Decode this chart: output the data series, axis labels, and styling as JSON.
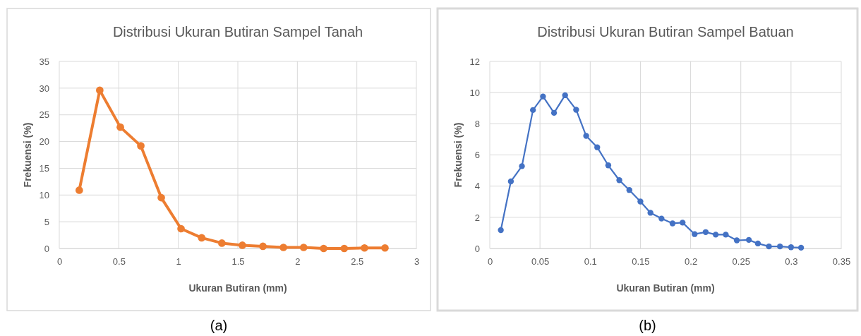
{
  "chart_data": [
    {
      "type": "line",
      "title": "Distribusi Ukuran Butiran Sampel Tanah",
      "xlabel": "Ukuran Butiran (mm)",
      "ylabel": "Frekuensi (%)",
      "annotations": [
        "(a)"
      ],
      "x": [
        0.168,
        0.34,
        0.513,
        0.685,
        0.857,
        1.023,
        1.196,
        1.366,
        1.538,
        1.711,
        1.883,
        2.053,
        2.221,
        2.394,
        2.564,
        2.736
      ],
      "series": [
        {
          "color": "#ed7d31",
          "values": [
            10.9,
            29.6,
            22.7,
            19.2,
            9.5,
            3.7,
            2.0,
            1.0,
            0.6,
            0.4,
            0.2,
            0.2,
            0.0,
            0.0,
            0.1,
            0.1
          ]
        }
      ],
      "xlim": [
        0,
        3
      ],
      "xticks": [
        0,
        0.5,
        1,
        1.5,
        2,
        2.5,
        3
      ],
      "ylim": [
        0,
        35
      ],
      "yticks": [
        0,
        5,
        10,
        15,
        20,
        25,
        30,
        35
      ],
      "grid": true,
      "marker": "circle",
      "line_style": "solid"
    },
    {
      "type": "line",
      "title": "Distribusi Ukuran Butiran Sampel Batuan",
      "xlabel": "Ukuran Butiran (mm)",
      "ylabel": "Frekuensi (%)",
      "annotations": [
        "(b)"
      ],
      "x": [
        0.011,
        0.021,
        0.032,
        0.043,
        0.053,
        0.064,
        0.075,
        0.086,
        0.096,
        0.107,
        0.118,
        0.129,
        0.139,
        0.15,
        0.16,
        0.171,
        0.182,
        0.192,
        0.204,
        0.215,
        0.225,
        0.235,
        0.246,
        0.258,
        0.267,
        0.278,
        0.289,
        0.3,
        0.31
      ],
      "series": [
        {
          "color": "#4472c4",
          "values": [
            1.18,
            4.3,
            5.28,
            8.88,
            9.75,
            8.7,
            9.83,
            8.9,
            7.22,
            6.49,
            5.33,
            4.38,
            3.75,
            3.01,
            2.29,
            1.92,
            1.61,
            1.66,
            0.92,
            1.05,
            0.89,
            0.89,
            0.52,
            0.55,
            0.32,
            0.13,
            0.13,
            0.08,
            0.05
          ]
        }
      ],
      "xlim": [
        0,
        0.35
      ],
      "xticks": [
        0,
        0.05,
        0.1,
        0.15,
        0.2,
        0.25,
        0.3,
        0.35
      ],
      "ylim": [
        0,
        12
      ],
      "yticks": [
        0,
        2,
        4,
        6,
        8,
        10,
        12
      ],
      "grid": true,
      "marker": "circle",
      "line_style": "solid"
    }
  ]
}
